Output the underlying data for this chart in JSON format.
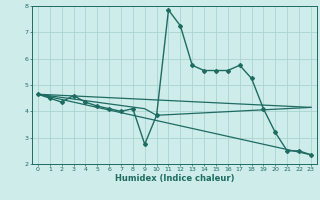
{
  "xlabel": "Humidex (Indice chaleur)",
  "xlim": [
    -0.5,
    23.5
  ],
  "ylim": [
    2,
    8
  ],
  "xticks": [
    0,
    1,
    2,
    3,
    4,
    5,
    6,
    7,
    8,
    9,
    10,
    11,
    12,
    13,
    14,
    15,
    16,
    17,
    18,
    19,
    20,
    21,
    22,
    23
  ],
  "yticks": [
    2,
    3,
    4,
    5,
    6,
    7,
    8
  ],
  "background_color": "#ceecea",
  "grid_color": "#aad4d0",
  "line_color": "#1e6b62",
  "series": [
    {
      "x": [
        0,
        1,
        2,
        3,
        4,
        5,
        6,
        7,
        8,
        9,
        10,
        11,
        12,
        13,
        14,
        15,
        16,
        17,
        18,
        19,
        20,
        21,
        22,
        23
      ],
      "y": [
        4.65,
        4.5,
        4.35,
        4.6,
        4.35,
        4.2,
        4.1,
        4.0,
        4.1,
        2.75,
        3.85,
        7.85,
        7.25,
        5.75,
        5.55,
        5.55,
        5.55,
        5.75,
        5.25,
        4.1,
        3.2,
        2.5,
        2.5,
        2.35
      ],
      "marker": "D",
      "markersize": 2.0,
      "linewidth": 1.0
    },
    {
      "x": [
        0,
        9,
        10,
        23
      ],
      "y": [
        4.65,
        4.1,
        3.85,
        4.15
      ],
      "marker": null,
      "linewidth": 0.9
    },
    {
      "x": [
        0,
        23
      ],
      "y": [
        4.65,
        4.15
      ],
      "marker": null,
      "linewidth": 0.9
    },
    {
      "x": [
        0,
        23
      ],
      "y": [
        4.65,
        2.35
      ],
      "marker": null,
      "linewidth": 0.9
    }
  ]
}
